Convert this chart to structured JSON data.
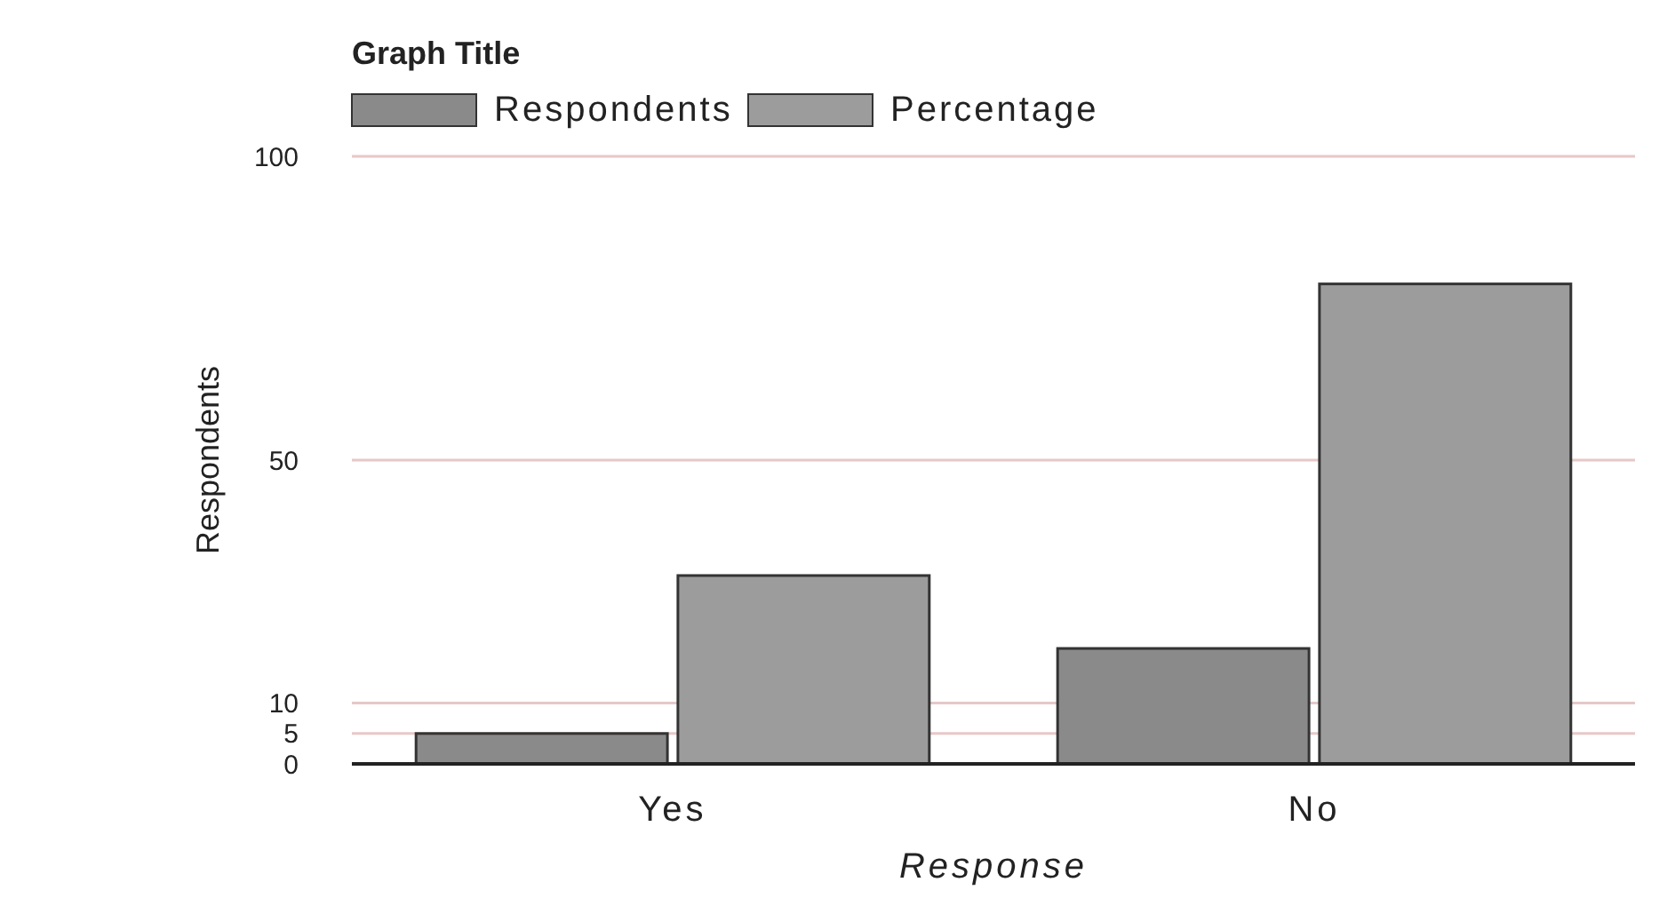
{
  "chart_data": {
    "type": "bar",
    "title": "Graph Title",
    "xlabel": "Response",
    "ylabel": "Respondents",
    "categories": [
      "Yes",
      "No"
    ],
    "series": [
      {
        "name": "Respondents",
        "color": "#8a8a8a",
        "values": [
          5,
          19
        ]
      },
      {
        "name": "Percentage",
        "color": "#9c9c9c",
        "values": [
          31,
          79
        ]
      }
    ],
    "ylim": [
      0,
      100
    ],
    "yticks": [
      0,
      5,
      10,
      50,
      100
    ],
    "grid": "y",
    "legend": "top left"
  }
}
